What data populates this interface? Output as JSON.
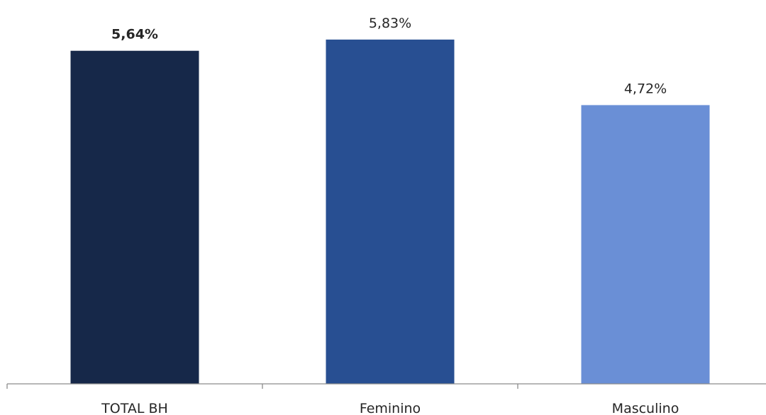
{
  "chart_data": {
    "type": "bar",
    "categories": [
      "TOTAL BH",
      "Feminino",
      "Masculino"
    ],
    "values": [
      5.64,
      5.83,
      4.72
    ],
    "value_labels": [
      "5,64%",
      "5,83%",
      "4,72%"
    ],
    "bold_labels": [
      true,
      false,
      false
    ],
    "colors": [
      "#162849",
      "#284F92",
      "#6A8FD6"
    ],
    "title": "",
    "xlabel": "",
    "ylabel": "",
    "ylim": [
      0,
      6.5
    ],
    "grid": false,
    "legend": "none"
  }
}
